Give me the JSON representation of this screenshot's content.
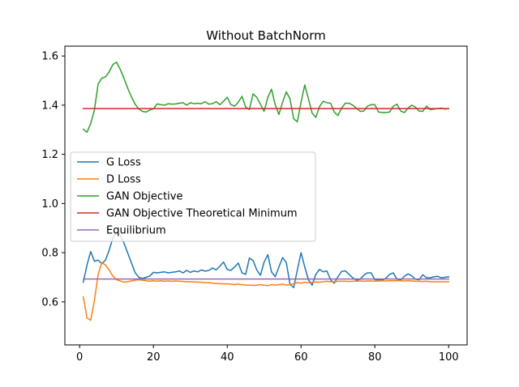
{
  "chart_data": {
    "type": "line",
    "title": "Without BatchNorm",
    "xlabel": "",
    "ylabel": "",
    "xlim": [
      -4,
      105
    ],
    "ylim": [
      0.425,
      1.64
    ],
    "xticks": [
      0,
      20,
      40,
      60,
      80,
      100
    ],
    "yticks": [
      0.6,
      0.8,
      1.0,
      1.2,
      1.4,
      1.6
    ],
    "xtick_labels": [
      "0",
      "20",
      "40",
      "60",
      "80",
      "100"
    ],
    "ytick_labels": [
      "0.6",
      "0.8",
      "1.0",
      "1.2",
      "1.4",
      "1.6"
    ],
    "grid": false,
    "legend_position": "center-left",
    "series": [
      {
        "name": "G Loss",
        "color": "#1f77b4",
        "x": [
          1,
          2,
          3,
          4,
          5,
          6,
          7,
          8,
          9,
          10,
          11,
          12,
          13,
          14,
          15,
          16,
          17,
          18,
          19,
          20,
          21,
          22,
          23,
          24,
          25,
          26,
          27,
          28,
          29,
          30,
          31,
          32,
          33,
          34,
          35,
          36,
          37,
          38,
          39,
          40,
          41,
          42,
          43,
          44,
          45,
          46,
          47,
          48,
          49,
          50,
          51,
          52,
          53,
          54,
          55,
          56,
          57,
          58,
          59,
          60,
          61,
          62,
          63,
          64,
          65,
          66,
          67,
          68,
          69,
          70,
          71,
          72,
          73,
          74,
          75,
          76,
          77,
          78,
          79,
          80,
          81,
          82,
          83,
          84,
          85,
          86,
          87,
          88,
          89,
          90,
          91,
          92,
          93,
          94,
          95,
          96,
          97,
          98,
          99,
          100
        ],
        "y": [
          0.68,
          0.75,
          0.805,
          0.765,
          0.77,
          0.755,
          0.77,
          0.81,
          0.86,
          0.885,
          0.87,
          0.84,
          0.8,
          0.76,
          0.72,
          0.7,
          0.695,
          0.7,
          0.705,
          0.72,
          0.718,
          0.72,
          0.722,
          0.718,
          0.72,
          0.722,
          0.726,
          0.718,
          0.728,
          0.72,
          0.726,
          0.722,
          0.73,
          0.725,
          0.728,
          0.738,
          0.73,
          0.745,
          0.762,
          0.732,
          0.728,
          0.742,
          0.758,
          0.718,
          0.712,
          0.778,
          0.768,
          0.73,
          0.708,
          0.762,
          0.792,
          0.722,
          0.702,
          0.742,
          0.78,
          0.76,
          0.672,
          0.658,
          0.73,
          0.8,
          0.742,
          0.69,
          0.668,
          0.712,
          0.732,
          0.722,
          0.726,
          0.69,
          0.676,
          0.702,
          0.724,
          0.726,
          0.712,
          0.698,
          0.688,
          0.692,
          0.708,
          0.718,
          0.718,
          0.69,
          0.69,
          0.688,
          0.696,
          0.712,
          0.718,
          0.692,
          0.688,
          0.704,
          0.714,
          0.706,
          0.692,
          0.69,
          0.71,
          0.698,
          0.698,
          0.702,
          0.704,
          0.698,
          0.7,
          0.702
        ]
      },
      {
        "name": "D Loss",
        "color": "#ff7f0e",
        "x": [
          1,
          2,
          3,
          4,
          5,
          6,
          7,
          8,
          9,
          10,
          11,
          12,
          13,
          14,
          15,
          16,
          17,
          18,
          19,
          20,
          21,
          22,
          23,
          24,
          25,
          26,
          27,
          28,
          29,
          30,
          31,
          32,
          33,
          34,
          35,
          36,
          37,
          38,
          39,
          40,
          41,
          42,
          43,
          44,
          45,
          46,
          47,
          48,
          49,
          50,
          51,
          52,
          53,
          54,
          55,
          56,
          57,
          58,
          59,
          60,
          61,
          62,
          63,
          64,
          65,
          66,
          67,
          68,
          69,
          70,
          71,
          72,
          73,
          74,
          75,
          76,
          77,
          78,
          79,
          80,
          81,
          82,
          83,
          84,
          85,
          86,
          87,
          88,
          89,
          90,
          91,
          92,
          93,
          94,
          95,
          96,
          97,
          98,
          99,
          100
        ],
        "y": [
          0.62,
          0.535,
          0.525,
          0.605,
          0.71,
          0.76,
          0.75,
          0.73,
          0.705,
          0.69,
          0.685,
          0.68,
          0.682,
          0.685,
          0.688,
          0.69,
          0.688,
          0.686,
          0.684,
          0.686,
          0.684,
          0.686,
          0.684,
          0.685,
          0.684,
          0.685,
          0.684,
          0.683,
          0.682,
          0.682,
          0.681,
          0.68,
          0.68,
          0.678,
          0.678,
          0.676,
          0.675,
          0.674,
          0.673,
          0.673,
          0.672,
          0.67,
          0.672,
          0.67,
          0.668,
          0.668,
          0.667,
          0.668,
          0.67,
          0.668,
          0.666,
          0.67,
          0.668,
          0.67,
          0.672,
          0.668,
          0.67,
          0.674,
          0.678,
          0.676,
          0.68,
          0.678,
          0.68,
          0.681,
          0.68,
          0.682,
          0.684,
          0.682,
          0.682,
          0.684,
          0.684,
          0.684,
          0.683,
          0.684,
          0.684,
          0.685,
          0.684,
          0.685,
          0.685,
          0.684,
          0.685,
          0.686,
          0.685,
          0.686,
          0.686,
          0.686,
          0.686,
          0.685,
          0.686,
          0.685,
          0.684,
          0.684,
          0.683,
          0.684,
          0.682,
          0.682,
          0.682,
          0.682,
          0.682,
          0.682
        ]
      },
      {
        "name": "GAN Objective",
        "color": "#2ca02c",
        "x": [
          1,
          2,
          3,
          4,
          5,
          6,
          7,
          8,
          9,
          10,
          11,
          12,
          13,
          14,
          15,
          16,
          17,
          18,
          19,
          20,
          21,
          22,
          23,
          24,
          25,
          26,
          27,
          28,
          29,
          30,
          31,
          32,
          33,
          34,
          35,
          36,
          37,
          38,
          39,
          40,
          41,
          42,
          43,
          44,
          45,
          46,
          47,
          48,
          49,
          50,
          51,
          52,
          53,
          54,
          55,
          56,
          57,
          58,
          59,
          60,
          61,
          62,
          63,
          64,
          65,
          66,
          67,
          68,
          69,
          70,
          71,
          72,
          73,
          74,
          75,
          76,
          77,
          78,
          79,
          80,
          81,
          82,
          83,
          84,
          85,
          86,
          87,
          88,
          89,
          90,
          91,
          92,
          93,
          94,
          95,
          96,
          97,
          98,
          99,
          100
        ],
        "y": [
          1.302,
          1.29,
          1.325,
          1.38,
          1.485,
          1.51,
          1.515,
          1.535,
          1.565,
          1.575,
          1.545,
          1.51,
          1.47,
          1.435,
          1.405,
          1.385,
          1.375,
          1.372,
          1.38,
          1.385,
          1.405,
          1.402,
          1.4,
          1.406,
          1.404,
          1.405,
          1.408,
          1.41,
          1.4,
          1.41,
          1.406,
          1.408,
          1.406,
          1.414,
          1.404,
          1.406,
          1.414,
          1.402,
          1.416,
          1.432,
          1.402,
          1.396,
          1.412,
          1.436,
          1.392,
          1.382,
          1.446,
          1.432,
          1.404,
          1.375,
          1.432,
          1.465,
          1.402,
          1.362,
          1.412,
          1.454,
          1.426,
          1.345,
          1.332,
          1.412,
          1.482,
          1.426,
          1.368,
          1.35,
          1.394,
          1.416,
          1.41,
          1.408,
          1.372,
          1.358,
          1.388,
          1.408,
          1.408,
          1.4,
          1.388,
          1.375,
          1.376,
          1.396,
          1.402,
          1.402,
          1.372,
          1.37,
          1.37,
          1.372,
          1.396,
          1.404,
          1.376,
          1.37,
          1.388,
          1.4,
          1.392,
          1.376,
          1.375,
          1.396,
          1.382,
          1.384,
          1.386,
          1.388,
          1.384,
          1.386
        ]
      },
      {
        "name": "GAN Objective Theoretical Minimum",
        "color": "#d62728",
        "x": [
          1,
          100
        ],
        "y": [
          1.386,
          1.386
        ]
      },
      {
        "name": "Equilibrium",
        "color": "#9467bd",
        "x": [
          1,
          100
        ],
        "y": [
          0.693,
          0.693
        ]
      }
    ]
  }
}
